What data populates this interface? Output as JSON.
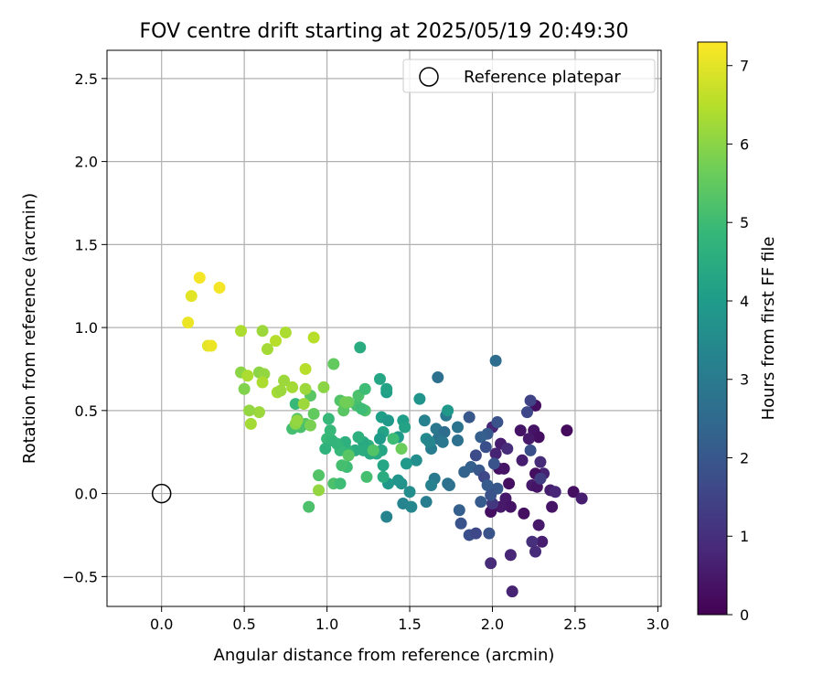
{
  "chart_data": {
    "type": "scatter",
    "title": "FOV centre drift starting at 2025/05/19 20:49:30",
    "xlabel": "Angular distance from reference (arcmin)",
    "ylabel": "Rotation from reference (arcmin)",
    "xlim": [
      -0.33,
      3.02
    ],
    "ylim": [
      -0.68,
      2.67
    ],
    "xticks": [
      0.0,
      0.5,
      1.0,
      1.5,
      2.0,
      2.5,
      3.0
    ],
    "xtick_labels": [
      "0.0",
      "0.5",
      "1.0",
      "1.5",
      "2.0",
      "2.5",
      "3.0"
    ],
    "yticks": [
      -0.5,
      0.0,
      0.5,
      1.0,
      1.5,
      2.0,
      2.5
    ],
    "ytick_labels": [
      "−0.5",
      "0.0",
      "0.5",
      "1.0",
      "1.5",
      "2.0",
      "2.5"
    ],
    "grid": true,
    "legend": {
      "position": "top-right",
      "entries": [
        "Reference platepar"
      ]
    },
    "reference_point": {
      "label": "Reference platepar",
      "x": 0.0,
      "y": 0.0
    },
    "colorbar": {
      "label": "Hours from first FF file",
      "min": 0,
      "max": 7.3,
      "ticks": [
        0,
        1,
        2,
        3,
        4,
        5,
        6,
        7
      ],
      "tick_labels": [
        "0",
        "1",
        "2",
        "3",
        "4",
        "5",
        "6",
        "7"
      ],
      "colormap": "viridis",
      "colors": [
        "#440154",
        "#482878",
        "#3e4989",
        "#31688e",
        "#26828e",
        "#1f9e89",
        "#35b779",
        "#6ece58",
        "#b5de2b",
        "#fde725"
      ]
    },
    "points": [
      {
        "x": 2.45,
        "y": 0.38,
        "t": 0.2
      },
      {
        "x": 2.49,
        "y": 0.01,
        "t": 0.3
      },
      {
        "x": 2.54,
        "y": -0.03,
        "t": 0.6
      },
      {
        "x": 2.26,
        "y": 0.53,
        "t": 0.3
      },
      {
        "x": 2.25,
        "y": 0.38,
        "t": 0.4
      },
      {
        "x": 2.28,
        "y": 0.34,
        "t": 0.3
      },
      {
        "x": 2.17,
        "y": 0.38,
        "t": 0.4
      },
      {
        "x": 2.22,
        "y": 0.33,
        "t": 0.5
      },
      {
        "x": 2.18,
        "y": 0.2,
        "t": 0.6
      },
      {
        "x": 2.29,
        "y": 0.19,
        "t": 0.9
      },
      {
        "x": 2.31,
        "y": 0.12,
        "t": 0.7
      },
      {
        "x": 2.26,
        "y": 0.12,
        "t": 0.3
      },
      {
        "x": 2.24,
        "y": 0.05,
        "t": 0.5
      },
      {
        "x": 2.27,
        "y": 0.04,
        "t": 0.4
      },
      {
        "x": 2.35,
        "y": 0.02,
        "t": 0.6
      },
      {
        "x": 2.38,
        "y": 0.01,
        "t": 0.8
      },
      {
        "x": 2.36,
        "y": -0.08,
        "t": 0.4
      },
      {
        "x": 2.19,
        "y": -0.12,
        "t": 0.3
      },
      {
        "x": 2.28,
        "y": -0.19,
        "t": 0.5
      },
      {
        "x": 2.3,
        "y": -0.29,
        "t": 0.6
      },
      {
        "x": 2.24,
        "y": -0.29,
        "t": 1.0
      },
      {
        "x": 2.26,
        "y": -0.35,
        "t": 0.9
      },
      {
        "x": 2.11,
        "y": -0.37,
        "t": 0.8
      },
      {
        "x": 2.12,
        "y": -0.59,
        "t": 0.7
      },
      {
        "x": 1.99,
        "y": -0.42,
        "t": 0.9
      },
      {
        "x": 2.04,
        "y": 0.15,
        "t": 0.3
      },
      {
        "x": 2.07,
        "y": 0.15,
        "t": 0.4
      },
      {
        "x": 2.1,
        "y": 0.06,
        "t": 0.3
      },
      {
        "x": 2.08,
        "y": -0.03,
        "t": 0.5
      },
      {
        "x": 2.11,
        "y": -0.08,
        "t": 0.4
      },
      {
        "x": 2.05,
        "y": -0.08,
        "t": 0.5
      },
      {
        "x": 1.99,
        "y": -0.11,
        "t": 0.3
      },
      {
        "x": 2.0,
        "y": -0.06,
        "t": 1.2
      },
      {
        "x": 2.05,
        "y": 0.3,
        "t": 0.6
      },
      {
        "x": 2.02,
        "y": 0.24,
        "t": 0.7
      },
      {
        "x": 2.09,
        "y": 0.27,
        "t": 0.9
      },
      {
        "x": 2.0,
        "y": 0.4,
        "t": 0.8
      },
      {
        "x": 2.23,
        "y": 0.56,
        "t": 1.5
      },
      {
        "x": 2.21,
        "y": 0.49,
        "t": 1.6
      },
      {
        "x": 2.23,
        "y": 0.26,
        "t": 1.8
      },
      {
        "x": 2.03,
        "y": 0.43,
        "t": 1.9
      },
      {
        "x": 2.29,
        "y": 0.09,
        "t": 1.3
      },
      {
        "x": 1.86,
        "y": 0.46,
        "t": 2.0
      },
      {
        "x": 1.97,
        "y": 0.36,
        "t": 2.1
      },
      {
        "x": 1.93,
        "y": 0.34,
        "t": 2.2
      },
      {
        "x": 1.96,
        "y": 0.28,
        "t": 1.8
      },
      {
        "x": 1.9,
        "y": 0.23,
        "t": 1.7
      },
      {
        "x": 2.01,
        "y": 0.18,
        "t": 1.9
      },
      {
        "x": 1.87,
        "y": 0.16,
        "t": 2.2
      },
      {
        "x": 1.92,
        "y": 0.14,
        "t": 2.0
      },
      {
        "x": 1.95,
        "y": 0.1,
        "t": 1.6
      },
      {
        "x": 1.83,
        "y": 0.13,
        "t": 2.3
      },
      {
        "x": 1.97,
        "y": 0.05,
        "t": 2.1
      },
      {
        "x": 2.03,
        "y": 0.03,
        "t": 2.0
      },
      {
        "x": 1.99,
        "y": -0.01,
        "t": 1.9
      },
      {
        "x": 1.93,
        "y": -0.05,
        "t": 2.1
      },
      {
        "x": 1.8,
        "y": -0.1,
        "t": 2.2
      },
      {
        "x": 1.81,
        "y": -0.18,
        "t": 1.9
      },
      {
        "x": 1.86,
        "y": -0.25,
        "t": 1.8
      },
      {
        "x": 1.9,
        "y": -0.24,
        "t": 1.6
      },
      {
        "x": 1.98,
        "y": -0.24,
        "t": 1.9
      },
      {
        "x": 2.02,
        "y": 0.8,
        "t": 2.6
      },
      {
        "x": 1.67,
        "y": 0.7,
        "t": 2.7
      },
      {
        "x": 1.72,
        "y": 0.47,
        "t": 2.9
      },
      {
        "x": 1.79,
        "y": 0.4,
        "t": 2.8
      },
      {
        "x": 1.66,
        "y": 0.39,
        "t": 2.9
      },
      {
        "x": 1.71,
        "y": 0.37,
        "t": 2.6
      },
      {
        "x": 1.67,
        "y": 0.33,
        "t": 2.8
      },
      {
        "x": 1.7,
        "y": 0.31,
        "t": 2.9
      },
      {
        "x": 1.79,
        "y": 0.32,
        "t": 2.7
      },
      {
        "x": 1.63,
        "y": 0.27,
        "t": 3.1
      },
      {
        "x": 1.73,
        "y": 0.06,
        "t": 2.8
      },
      {
        "x": 1.74,
        "y": 0.05,
        "t": 2.7
      },
      {
        "x": 1.65,
        "y": 0.09,
        "t": 3.0
      },
      {
        "x": 1.63,
        "y": 0.05,
        "t": 3.2
      },
      {
        "x": 1.6,
        "y": -0.05,
        "t": 3.1
      },
      {
        "x": 1.46,
        "y": -0.06,
        "t": 3.3
      },
      {
        "x": 1.51,
        "y": -0.08,
        "t": 3.4
      },
      {
        "x": 1.36,
        "y": -0.14,
        "t": 3.3
      },
      {
        "x": 1.59,
        "y": 0.44,
        "t": 3.2
      },
      {
        "x": 1.56,
        "y": 0.57,
        "t": 3.8
      },
      {
        "x": 1.6,
        "y": 0.33,
        "t": 3.5
      },
      {
        "x": 1.62,
        "y": 0.31,
        "t": 3.4
      },
      {
        "x": 1.73,
        "y": 0.5,
        "t": 3.9
      },
      {
        "x": 1.54,
        "y": 0.2,
        "t": 3.6
      },
      {
        "x": 1.48,
        "y": 0.18,
        "t": 3.9
      },
      {
        "x": 1.5,
        "y": 0.01,
        "t": 3.6
      },
      {
        "x": 1.45,
        "y": 0.06,
        "t": 3.7
      },
      {
        "x": 1.43,
        "y": 0.08,
        "t": 3.8
      },
      {
        "x": 1.37,
        "y": 0.06,
        "t": 3.9
      },
      {
        "x": 1.43,
        "y": 0.34,
        "t": 4.0
      },
      {
        "x": 1.46,
        "y": 0.44,
        "t": 4.1
      },
      {
        "x": 1.47,
        "y": 0.4,
        "t": 4.2
      },
      {
        "x": 1.33,
        "y": 0.46,
        "t": 4.1
      },
      {
        "x": 1.37,
        "y": 0.44,
        "t": 3.9
      },
      {
        "x": 1.36,
        "y": 0.61,
        "t": 4.1
      },
      {
        "x": 1.36,
        "y": 0.63,
        "t": 4.2
      },
      {
        "x": 1.32,
        "y": 0.69,
        "t": 4.3
      },
      {
        "x": 1.2,
        "y": 0.88,
        "t": 4.5
      },
      {
        "x": 1.34,
        "y": 0.37,
        "t": 4.2
      },
      {
        "x": 1.32,
        "y": 0.33,
        "t": 4.0
      },
      {
        "x": 1.33,
        "y": 0.26,
        "t": 4.3
      },
      {
        "x": 1.3,
        "y": 0.24,
        "t": 4.4
      },
      {
        "x": 1.26,
        "y": 0.24,
        "t": 4.4
      },
      {
        "x": 1.34,
        "y": 0.17,
        "t": 4.3
      },
      {
        "x": 1.34,
        "y": 0.1,
        "t": 4.5
      },
      {
        "x": 1.25,
        "y": 0.29,
        "t": 4.6
      },
      {
        "x": 1.22,
        "y": 0.31,
        "t": 4.4
      },
      {
        "x": 1.19,
        "y": 0.34,
        "t": 4.6
      },
      {
        "x": 1.22,
        "y": 0.26,
        "t": 4.5
      },
      {
        "x": 1.17,
        "y": 0.26,
        "t": 4.5
      },
      {
        "x": 1.13,
        "y": 0.25,
        "t": 4.7
      },
      {
        "x": 1.11,
        "y": 0.28,
        "t": 4.8
      },
      {
        "x": 1.11,
        "y": 0.31,
        "t": 4.6
      },
      {
        "x": 1.08,
        "y": 0.26,
        "t": 4.9
      },
      {
        "x": 1.06,
        "y": 0.3,
        "t": 4.8
      },
      {
        "x": 1.0,
        "y": 0.33,
        "t": 4.9
      },
      {
        "x": 1.03,
        "y": 0.32,
        "t": 4.8
      },
      {
        "x": 1.02,
        "y": 0.38,
        "t": 4.9
      },
      {
        "x": 0.99,
        "y": 0.27,
        "t": 4.7
      },
      {
        "x": 1.01,
        "y": 0.45,
        "t": 4.9
      },
      {
        "x": 1.18,
        "y": 0.53,
        "t": 5.1
      },
      {
        "x": 1.19,
        "y": 0.59,
        "t": 5.2
      },
      {
        "x": 1.23,
        "y": 0.63,
        "t": 5.0
      },
      {
        "x": 1.23,
        "y": 0.5,
        "t": 5.2
      },
      {
        "x": 1.21,
        "y": 0.51,
        "t": 5.0
      },
      {
        "x": 1.12,
        "y": 0.16,
        "t": 5.0
      },
      {
        "x": 1.09,
        "y": 0.17,
        "t": 5.1
      },
      {
        "x": 1.04,
        "y": 0.06,
        "t": 5.2
      },
      {
        "x": 1.08,
        "y": 0.06,
        "t": 5.0
      },
      {
        "x": 1.24,
        "y": 0.1,
        "t": 5.1
      },
      {
        "x": 1.28,
        "y": 0.26,
        "t": 5.3
      },
      {
        "x": 1.13,
        "y": 0.23,
        "t": 5.4
      },
      {
        "x": 0.95,
        "y": 0.11,
        "t": 5.3
      },
      {
        "x": 0.89,
        "y": -0.08,
        "t": 5.2
      },
      {
        "x": 1.04,
        "y": 0.78,
        "t": 5.5
      },
      {
        "x": 1.1,
        "y": 0.5,
        "t": 5.4
      },
      {
        "x": 1.08,
        "y": 0.56,
        "t": 5.3
      },
      {
        "x": 1.13,
        "y": 0.55,
        "t": 5.6
      },
      {
        "x": 1.11,
        "y": 0.55,
        "t": 5.7
      },
      {
        "x": 1.45,
        "y": 0.27,
        "t": 5.6
      },
      {
        "x": 1.4,
        "y": 0.33,
        "t": 5.0
      },
      {
        "x": 0.92,
        "y": 0.48,
        "t": 5.5
      },
      {
        "x": 0.9,
        "y": 0.59,
        "t": 5.4
      },
      {
        "x": 0.82,
        "y": 0.45,
        "t": 5.3
      },
      {
        "x": 0.87,
        "y": 0.42,
        "t": 5.4
      },
      {
        "x": 0.84,
        "y": 0.4,
        "t": 5.2
      },
      {
        "x": 0.79,
        "y": 0.39,
        "t": 5.1
      },
      {
        "x": 0.81,
        "y": 0.54,
        "t": 4.9
      },
      {
        "x": 0.9,
        "y": 0.41,
        "t": 5.8
      },
      {
        "x": 0.81,
        "y": 0.42,
        "t": 6.0
      },
      {
        "x": 0.82,
        "y": 0.44,
        "t": 6.1
      },
      {
        "x": 0.86,
        "y": 0.54,
        "t": 6.2
      },
      {
        "x": 0.87,
        "y": 0.63,
        "t": 6.2
      },
      {
        "x": 0.98,
        "y": 0.64,
        "t": 6.0
      },
      {
        "x": 0.95,
        "y": 0.02,
        "t": 6.1
      },
      {
        "x": 0.79,
        "y": 0.64,
        "t": 6.3
      },
      {
        "x": 0.74,
        "y": 0.68,
        "t": 6.2
      },
      {
        "x": 0.7,
        "y": 0.61,
        "t": 6.3
      },
      {
        "x": 0.72,
        "y": 0.62,
        "t": 6.2
      },
      {
        "x": 0.59,
        "y": 0.73,
        "t": 6.0
      },
      {
        "x": 0.62,
        "y": 0.72,
        "t": 6.1
      },
      {
        "x": 0.61,
        "y": 0.67,
        "t": 6.4
      },
      {
        "x": 0.59,
        "y": 0.49,
        "t": 6.2
      },
      {
        "x": 0.53,
        "y": 0.5,
        "t": 6.1
      },
      {
        "x": 0.54,
        "y": 0.42,
        "t": 6.3
      },
      {
        "x": 0.5,
        "y": 0.63,
        "t": 5.9
      },
      {
        "x": 0.48,
        "y": 0.73,
        "t": 6.0
      },
      {
        "x": 0.52,
        "y": 0.71,
        "t": 6.4
      },
      {
        "x": 0.87,
        "y": 0.75,
        "t": 6.5
      },
      {
        "x": 0.92,
        "y": 0.94,
        "t": 6.5
      },
      {
        "x": 0.75,
        "y": 0.97,
        "t": 6.4
      },
      {
        "x": 0.69,
        "y": 0.92,
        "t": 6.5
      },
      {
        "x": 0.64,
        "y": 0.87,
        "t": 6.3
      },
      {
        "x": 0.61,
        "y": 0.98,
        "t": 6.2
      },
      {
        "x": 0.48,
        "y": 0.98,
        "t": 6.4
      },
      {
        "x": 0.16,
        "y": 1.03,
        "t": 7.1
      },
      {
        "x": 0.28,
        "y": 0.89,
        "t": 7.0
      },
      {
        "x": 0.3,
        "y": 0.89,
        "t": 7.1
      },
      {
        "x": 0.18,
        "y": 1.19,
        "t": 7.0
      },
      {
        "x": 0.23,
        "y": 1.3,
        "t": 7.2
      },
      {
        "x": 0.35,
        "y": 1.24,
        "t": 7.2
      }
    ]
  }
}
